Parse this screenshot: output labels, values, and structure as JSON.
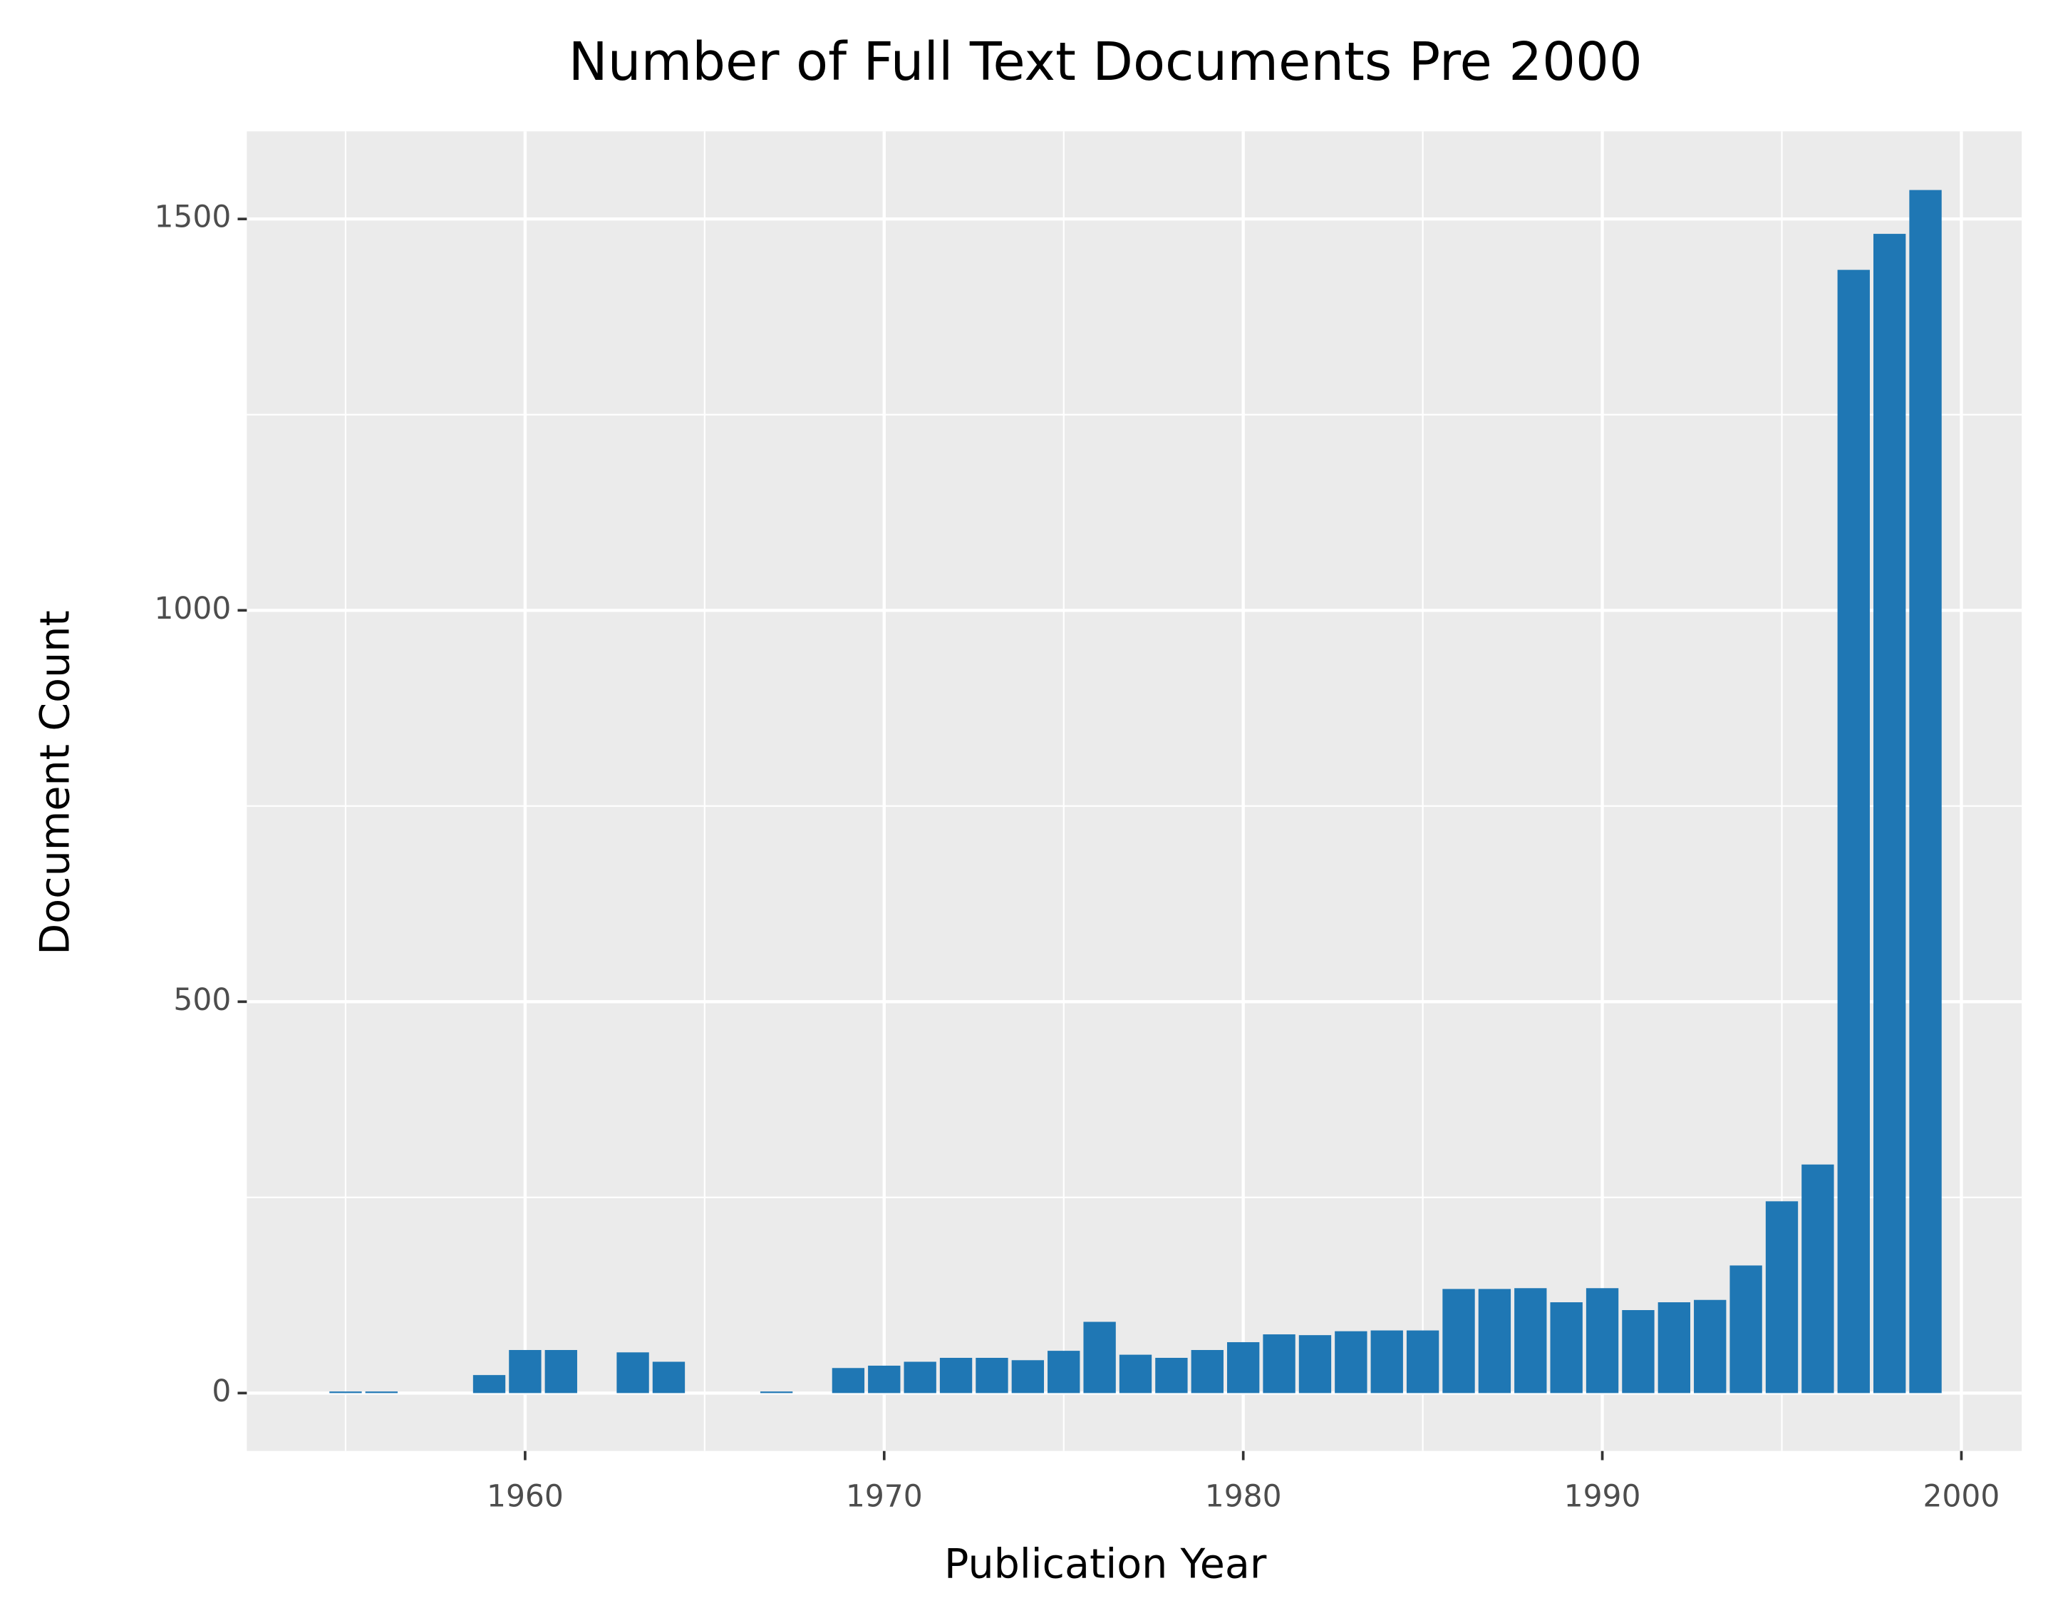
{
  "chart_data": {
    "type": "bar",
    "title": "Number of Full Text Documents Pre 2000",
    "x_label": "Publication Year",
    "y_label": "Document Count",
    "x": [
      1955,
      1956,
      1959,
      1960,
      1961,
      1963,
      1964,
      1967,
      1969,
      1970,
      1971,
      1972,
      1973,
      1974,
      1975,
      1976,
      1977,
      1978,
      1979,
      1980,
      1981,
      1982,
      1983,
      1984,
      1985,
      1986,
      1987,
      1988,
      1989,
      1990,
      1991,
      1992,
      1993,
      1994,
      1995,
      1996,
      1997,
      1998,
      1999
    ],
    "values": [
      2,
      2,
      23,
      55,
      55,
      52,
      40,
      2,
      32,
      35,
      40,
      45,
      45,
      42,
      54,
      91,
      49,
      45,
      55,
      65,
      75,
      74,
      79,
      80,
      80,
      133,
      133,
      134,
      116,
      134,
      106,
      116,
      119,
      163,
      245,
      292,
      1435,
      1481,
      1537
    ],
    "color": "#1f77b4",
    "xlim": [
      1952.25,
      2001.68
    ],
    "ylim": [
      -74,
      1612
    ],
    "xticks": [
      1960,
      1970,
      1980,
      1990,
      2000
    ],
    "yticks": [
      0,
      500,
      1000,
      1500
    ],
    "x_minor_grid": [
      1955,
      1965,
      1975,
      1985,
      1995
    ],
    "y_minor_grid": [
      250,
      750,
      1250
    ],
    "grid": true
  }
}
